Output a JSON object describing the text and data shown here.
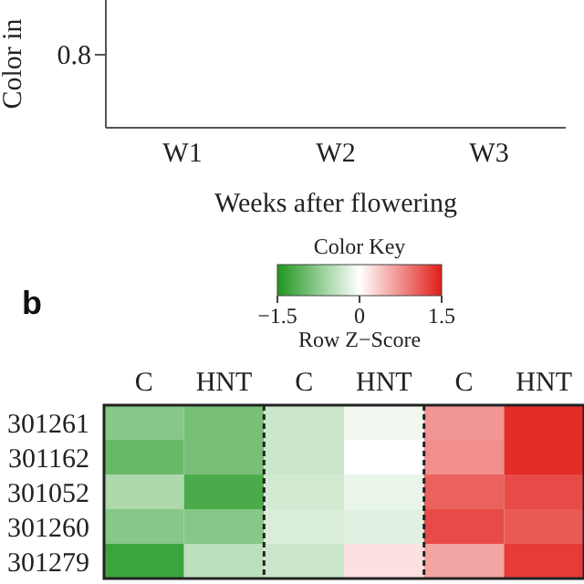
{
  "chart_data": [
    {
      "type": "other",
      "xlabel": "Weeks after flowering",
      "ylabel": "Color in",
      "categories": [
        "W1",
        "W2",
        "W3"
      ],
      "annotations": [
        "0.8"
      ]
    },
    {
      "type": "heatmap",
      "annotations": [
        "b"
      ],
      "legend_title": "Color Key",
      "clabel": "Row Z−Score",
      "categories": [
        "C",
        "HNT",
        "C",
        "HNT",
        "C",
        "HNT"
      ],
      "y_categories": [
        "301261",
        "301162",
        "301052",
        "301260",
        "301279"
      ],
      "cells": [
        [
          -0.8,
          -0.9,
          -0.35,
          -0.1,
          0.7,
          1.4
        ],
        [
          -1.0,
          -0.9,
          -0.35,
          0.0,
          0.75,
          1.4
        ],
        [
          -0.55,
          -1.2,
          -0.3,
          -0.15,
          1.05,
          1.2
        ],
        [
          -0.8,
          -0.8,
          -0.25,
          -0.2,
          1.2,
          1.1
        ],
        [
          -1.3,
          -0.45,
          -0.35,
          0.2,
          0.6,
          1.3
        ]
      ],
      "clim": [
        -1.5,
        1.5
      ],
      "cticks": [
        {
          "value": -1.5,
          "label": "−1.5"
        },
        0,
        1.5
      ]
    }
  ]
}
